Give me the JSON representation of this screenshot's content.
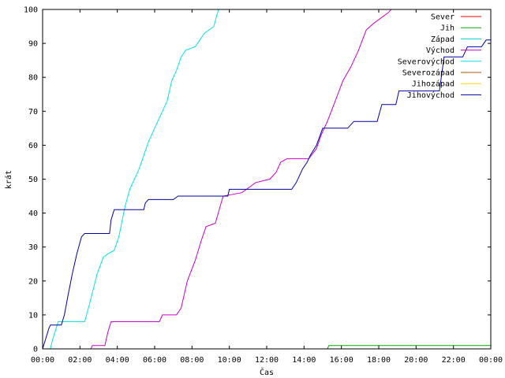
{
  "chart_data": {
    "type": "line",
    "title": "",
    "xlabel": "Čas",
    "ylabel": "krát",
    "xlim": [
      "00:00",
      "24:00"
    ],
    "ylim": [
      0,
      100
    ],
    "grid": false,
    "legend_position": "top-right",
    "x_ticks": [
      "00:00",
      "02:00",
      "04:00",
      "06:00",
      "08:00",
      "10:00",
      "12:00",
      "14:00",
      "16:00",
      "18:00",
      "20:00",
      "22:00",
      "00:00"
    ],
    "y_ticks": [
      "0",
      "10",
      "20",
      "30",
      "40",
      "50",
      "60",
      "70",
      "80",
      "90",
      "100"
    ],
    "series": [
      {
        "name": "Sever",
        "color": "#ff0000",
        "points": []
      },
      {
        "name": "Jih",
        "color": "#00aa00",
        "points": [
          [
            "00:00",
            0
          ],
          [
            "15:15",
            0
          ],
          [
            "15:20",
            1
          ],
          [
            "24:00",
            1
          ]
        ]
      },
      {
        "name": "Západ",
        "color": "#00cccc",
        "points": []
      },
      {
        "name": "Východ",
        "color": "#cc00cc",
        "points": [
          [
            "02:35",
            0
          ],
          [
            "02:40",
            1
          ],
          [
            "03:20",
            1
          ],
          [
            "03:30",
            5
          ],
          [
            "03:40",
            8
          ],
          [
            "06:15",
            8
          ],
          [
            "06:25",
            10
          ],
          [
            "07:10",
            10
          ],
          [
            "07:25",
            12
          ],
          [
            "07:45",
            20
          ],
          [
            "08:10",
            26
          ],
          [
            "08:30",
            32
          ],
          [
            "08:45",
            36
          ],
          [
            "09:15",
            37
          ],
          [
            "09:40",
            45
          ],
          [
            "10:40",
            46
          ],
          [
            "11:10",
            48
          ],
          [
            "11:25",
            49
          ],
          [
            "12:10",
            50
          ],
          [
            "12:30",
            52
          ],
          [
            "12:45",
            55
          ],
          [
            "13:05",
            56
          ],
          [
            "14:15",
            56
          ],
          [
            "14:40",
            59
          ],
          [
            "14:55",
            63
          ],
          [
            "15:15",
            67
          ],
          [
            "15:40",
            73
          ],
          [
            "16:05",
            79
          ],
          [
            "16:30",
            83
          ],
          [
            "16:55",
            88
          ],
          [
            "17:20",
            94
          ],
          [
            "17:45",
            96
          ],
          [
            "18:30",
            99
          ],
          [
            "18:40",
            100
          ]
        ]
      },
      {
        "name": "Severovýchod",
        "color": "#00e5e5",
        "points": [
          [
            "00:25",
            0
          ],
          [
            "00:30",
            2
          ],
          [
            "00:50",
            8
          ],
          [
            "02:15",
            8
          ],
          [
            "02:30",
            13
          ],
          [
            "02:55",
            22
          ],
          [
            "03:15",
            27
          ],
          [
            "03:30",
            28
          ],
          [
            "03:50",
            29
          ],
          [
            "04:05",
            33
          ],
          [
            "04:25",
            42
          ],
          [
            "04:40",
            47
          ],
          [
            "04:55",
            50
          ],
          [
            "05:10",
            53
          ],
          [
            "05:25",
            57
          ],
          [
            "05:40",
            61
          ],
          [
            "05:55",
            64
          ],
          [
            "06:10",
            67
          ],
          [
            "06:25",
            70
          ],
          [
            "06:40",
            73
          ],
          [
            "06:55",
            79
          ],
          [
            "07:10",
            82
          ],
          [
            "07:25",
            86
          ],
          [
            "07:40",
            88
          ],
          [
            "08:10",
            89
          ],
          [
            "08:25",
            91
          ],
          [
            "08:40",
            93
          ],
          [
            "09:10",
            95
          ],
          [
            "09:25",
            100
          ]
        ]
      },
      {
        "name": "Severozápad",
        "color": "#aa5500",
        "points": []
      },
      {
        "name": "Jihozápad",
        "color": "#ffd700",
        "points": []
      },
      {
        "name": "Jihovýchod",
        "color": "#0000aa",
        "points": [
          [
            "00:00",
            0
          ],
          [
            "00:20",
            6
          ],
          [
            "00:25",
            7
          ],
          [
            "01:00",
            7
          ],
          [
            "01:10",
            10
          ],
          [
            "01:20",
            15
          ],
          [
            "01:35",
            22
          ],
          [
            "01:50",
            28
          ],
          [
            "02:05",
            33
          ],
          [
            "02:15",
            34
          ],
          [
            "03:35",
            34
          ],
          [
            "03:40",
            38
          ],
          [
            "03:50",
            41
          ],
          [
            "05:25",
            41
          ],
          [
            "05:30",
            43
          ],
          [
            "05:40",
            44
          ],
          [
            "07:00",
            44
          ],
          [
            "07:15",
            45
          ],
          [
            "09:55",
            45
          ],
          [
            "10:00",
            47
          ],
          [
            "13:20",
            47
          ],
          [
            "13:35",
            49
          ],
          [
            "13:55",
            53
          ],
          [
            "14:10",
            55
          ],
          [
            "14:20",
            57
          ],
          [
            "14:40",
            60
          ],
          [
            "15:00",
            65
          ],
          [
            "16:20",
            65
          ],
          [
            "16:40",
            67
          ],
          [
            "17:55",
            67
          ],
          [
            "18:10",
            72
          ],
          [
            "18:55",
            72
          ],
          [
            "19:05",
            76
          ],
          [
            "21:15",
            76
          ],
          [
            "21:30",
            86
          ],
          [
            "22:30",
            86
          ],
          [
            "22:45",
            89
          ],
          [
            "23:30",
            89
          ],
          [
            "23:45",
            91
          ],
          [
            "24:00",
            91
          ]
        ]
      }
    ]
  }
}
